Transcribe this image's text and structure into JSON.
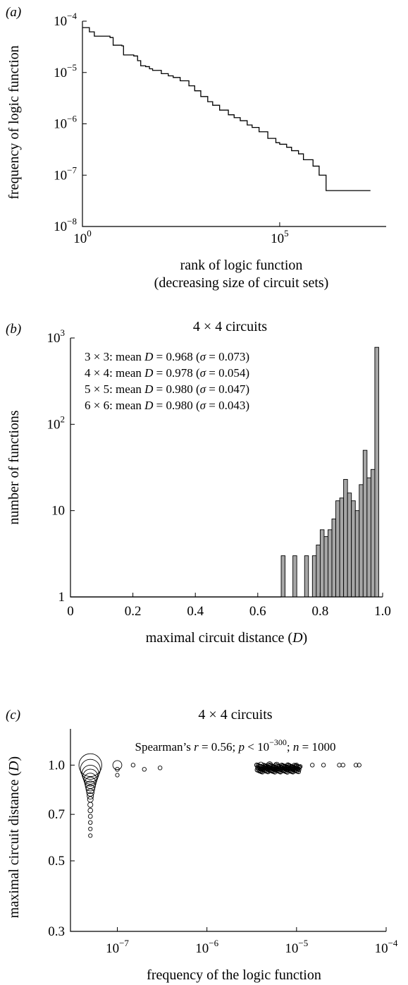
{
  "colors": {
    "ink": "#000000",
    "bar_fill": "#a6a6a6",
    "background": "#ffffff"
  },
  "chart_data": [
    {
      "panel": "(a)",
      "type": "line",
      "title": "",
      "xlabel": "rank of logic function",
      "xlabel2": "(decreasing size of circuit sets)",
      "ylabel": "frequency of logic function",
      "xscale": "log",
      "yscale": "log",
      "xlim": [
        1,
        50000000
      ],
      "ylim": [
        1e-08,
        0.0001
      ],
      "xticks": [
        {
          "value": 1,
          "label": "10",
          "exp": "0"
        },
        {
          "value": 100000,
          "label": "10",
          "exp": "5"
        }
      ],
      "yticks": [
        {
          "value": 1e-08,
          "label": "10",
          "exp": "−8"
        },
        {
          "value": 1e-07,
          "label": "10",
          "exp": "−7"
        },
        {
          "value": 1e-06,
          "label": "10",
          "exp": "−6"
        },
        {
          "value": 1e-05,
          "label": "10",
          "exp": "−5"
        },
        {
          "value": 0.0001,
          "label": "10",
          "exp": "−4"
        }
      ],
      "series": [
        {
          "x": [
            1,
            1.5,
            2,
            5,
            6,
            10,
            11,
            20,
            25,
            30,
            40,
            50,
            60,
            100,
            150,
            200,
            300,
            500,
            700,
            1000,
            1500,
            2000,
            3000,
            5000,
            7000,
            10000,
            15000,
            20000,
            30000,
            50000,
            80000,
            100000,
            150000,
            200000,
            300000,
            400000,
            700000,
            1000000,
            1500000,
            20000000
          ],
          "y": [
            7.5e-05,
            6.2e-05,
            5.1e-05,
            4.8e-05,
            3.4e-05,
            3.3e-05,
            2.2e-05,
            2.1e-05,
            1.7e-05,
            1.35e-05,
            1.3e-05,
            1.18e-05,
            1.1e-05,
            9.5e-06,
            8.6e-06,
            8e-06,
            6.9e-06,
            5.5e-06,
            4.4e-06,
            3.4e-06,
            2.7e-06,
            2.3e-06,
            1.85e-06,
            1.5e-06,
            1.32e-06,
            1.15e-06,
            9.5e-07,
            8.5e-07,
            7e-07,
            5.2e-07,
            4.3e-07,
            4e-07,
            3.5e-07,
            3e-07,
            2.6e-07,
            2e-07,
            1.5e-07,
            1e-07,
            5e-08,
            5e-08
          ]
        }
      ]
    },
    {
      "panel": "(b)",
      "type": "bar",
      "title": "4 × 4 circuits",
      "xlabel": "maximal circuit distance (",
      "xlabel_var": "D",
      "xlabel_end": ")",
      "ylabel": "number of functions",
      "yscale": "log",
      "xlim": [
        0,
        1
      ],
      "ylim": [
        1,
        1000
      ],
      "xticks": [
        "0",
        "0.2",
        "0.4",
        "0.6",
        "0.8",
        "1.0"
      ],
      "yticks": [
        {
          "value": 1,
          "label": "1",
          "exp": ""
        },
        {
          "value": 10,
          "label": "10",
          "exp": ""
        },
        {
          "value": 100,
          "label": "10",
          "exp": "2"
        },
        {
          "value": 1000,
          "label": "10",
          "exp": "3"
        }
      ],
      "legend_lines": [
        {
          "grid": "3 × 3: mean ",
          "var": "D",
          "eq": " = 0.968 (",
          "sigma": "σ",
          "rest": " = 0.073)"
        },
        {
          "grid": "4 × 4: mean ",
          "var": "D",
          "eq": " = 0.978 (",
          "sigma": "σ",
          "rest": " = 0.054)"
        },
        {
          "grid": "5 × 5: mean ",
          "var": "D",
          "eq": " = 0.980 (",
          "sigma": "σ",
          "rest": " = 0.047)"
        },
        {
          "grid": "6 × 6: mean ",
          "var": "D",
          "eq": " = 0.980 (",
          "sigma": "σ",
          "rest": " = 0.043)"
        }
      ],
      "bin_width": 0.0125,
      "bins": [
        {
          "x": 0.675,
          "count": 3
        },
        {
          "x": 0.7125,
          "count": 3
        },
        {
          "x": 0.75,
          "count": 3
        },
        {
          "x": 0.775,
          "count": 3
        },
        {
          "x": 0.7875,
          "count": 4
        },
        {
          "x": 0.8,
          "count": 6
        },
        {
          "x": 0.8125,
          "count": 5
        },
        {
          "x": 0.825,
          "count": 6
        },
        {
          "x": 0.8375,
          "count": 8
        },
        {
          "x": 0.85,
          "count": 13
        },
        {
          "x": 0.8625,
          "count": 14
        },
        {
          "x": 0.875,
          "count": 23
        },
        {
          "x": 0.8875,
          "count": 16
        },
        {
          "x": 0.9,
          "count": 13
        },
        {
          "x": 0.9125,
          "count": 10
        },
        {
          "x": 0.925,
          "count": 20
        },
        {
          "x": 0.9375,
          "count": 50
        },
        {
          "x": 0.95,
          "count": 24
        },
        {
          "x": 0.9625,
          "count": 30
        },
        {
          "x": 0.975,
          "count": 780
        }
      ]
    },
    {
      "panel": "(c)",
      "type": "scatter",
      "title": "4 × 4 circuits",
      "annotation": {
        "a": "Spearman’s ",
        "r": "r",
        "b": " = 0.56; ",
        "p": "p",
        "c": " < 10",
        "exp": "−300",
        "d": "; ",
        "n": "n",
        "e": " = 1000"
      },
      "xlabel": "frequency of the logic function",
      "ylabel": "maximal circuit distance (",
      "ylabel_var": "D",
      "ylabel_end": ")",
      "xscale": "log",
      "yscale": "log",
      "xlim": [
        3e-08,
        0.0001
      ],
      "ylim": [
        0.3,
        1.3
      ],
      "xticks": [
        {
          "value": 1e-07,
          "label": "10",
          "exp": "−7"
        },
        {
          "value": 1e-06,
          "label": "10",
          "exp": "−6"
        },
        {
          "value": 1e-05,
          "label": "10",
          "exp": "−5"
        },
        {
          "value": 0.0001,
          "label": "10",
          "exp": "−4"
        }
      ],
      "yticks": [
        {
          "value": 0.3,
          "label": "0.3"
        },
        {
          "value": 0.5,
          "label": "0.5"
        },
        {
          "value": 0.7,
          "label": "0.7"
        },
        {
          "value": 1.0,
          "label": "1.0"
        }
      ],
      "point_size_note": "marker area proportional to number of functions",
      "points": [
        {
          "x": 5e-08,
          "y": 1.0,
          "size": 1
        },
        {
          "x": 5e-08,
          "y": 0.97,
          "size": 0.85
        },
        {
          "x": 5e-08,
          "y": 0.94,
          "size": 0.7
        },
        {
          "x": 5e-08,
          "y": 0.92,
          "size": 0.6
        },
        {
          "x": 5e-08,
          "y": 0.9,
          "size": 0.5
        },
        {
          "x": 5e-08,
          "y": 0.88,
          "size": 0.42
        },
        {
          "x": 5e-08,
          "y": 0.86,
          "size": 0.35
        },
        {
          "x": 5e-08,
          "y": 0.84,
          "size": 0.28
        },
        {
          "x": 5e-08,
          "y": 0.82,
          "size": 0.22
        },
        {
          "x": 5e-08,
          "y": 0.8,
          "size": 0.17
        },
        {
          "x": 5e-08,
          "y": 0.78,
          "size": 0.13
        },
        {
          "x": 5e-08,
          "y": 0.75,
          "size": 0.1
        },
        {
          "x": 5e-08,
          "y": 0.72,
          "size": 0.08
        },
        {
          "x": 5e-08,
          "y": 0.69,
          "size": 0.05
        },
        {
          "x": 5e-08,
          "y": 0.66,
          "size": 0.04
        },
        {
          "x": 5e-08,
          "y": 0.63,
          "size": 0.03
        },
        {
          "x": 5e-08,
          "y": 0.6,
          "size": 0.03
        },
        {
          "x": 1e-07,
          "y": 1.0,
          "size": 0.3
        },
        {
          "x": 1e-07,
          "y": 0.97,
          "size": 0.05
        },
        {
          "x": 1e-07,
          "y": 0.93,
          "size": 0.03
        },
        {
          "x": 1.5e-07,
          "y": 1.0,
          "size": 0.04
        },
        {
          "x": 2e-07,
          "y": 0.97,
          "size": 0.04
        },
        {
          "x": 3e-07,
          "y": 0.98,
          "size": 0.04
        },
        {
          "x": 4e-06,
          "y": 1.0,
          "size": 0.15
        },
        {
          "x": 4.5e-06,
          "y": 0.99,
          "size": 0.12
        },
        {
          "x": 5e-06,
          "y": 1.0,
          "size": 0.18
        },
        {
          "x": 5.5e-06,
          "y": 0.98,
          "size": 0.1
        },
        {
          "x": 6e-06,
          "y": 1.0,
          "size": 0.14
        },
        {
          "x": 7e-06,
          "y": 0.99,
          "size": 0.09
        },
        {
          "x": 8e-06,
          "y": 1.0,
          "size": 0.08
        },
        {
          "x": 9e-06,
          "y": 0.98,
          "size": 0.05
        },
        {
          "x": 4e-06,
          "y": 0.97,
          "size": 0.05
        },
        {
          "x": 5e-06,
          "y": 0.96,
          "size": 0.04
        },
        {
          "x": 6e-06,
          "y": 0.97,
          "size": 0.04
        },
        {
          "x": 8e-06,
          "y": 0.97,
          "size": 0.04
        },
        {
          "x": 1e-05,
          "y": 1.0,
          "size": 0.05
        },
        {
          "x": 1.1e-05,
          "y": 0.99,
          "size": 0.04
        },
        {
          "x": 1.5e-05,
          "y": 1.0,
          "size": 0.04
        },
        {
          "x": 2e-05,
          "y": 1.0,
          "size": 0.04
        },
        {
          "x": 3e-05,
          "y": 1.0,
          "size": 0.04
        },
        {
          "x": 3.3e-05,
          "y": 1.0,
          "size": 0.04
        },
        {
          "x": 4.6e-05,
          "y": 1.0,
          "size": 0.04
        },
        {
          "x": 5e-05,
          "y": 1.0,
          "size": 0.04
        }
      ]
    }
  ]
}
